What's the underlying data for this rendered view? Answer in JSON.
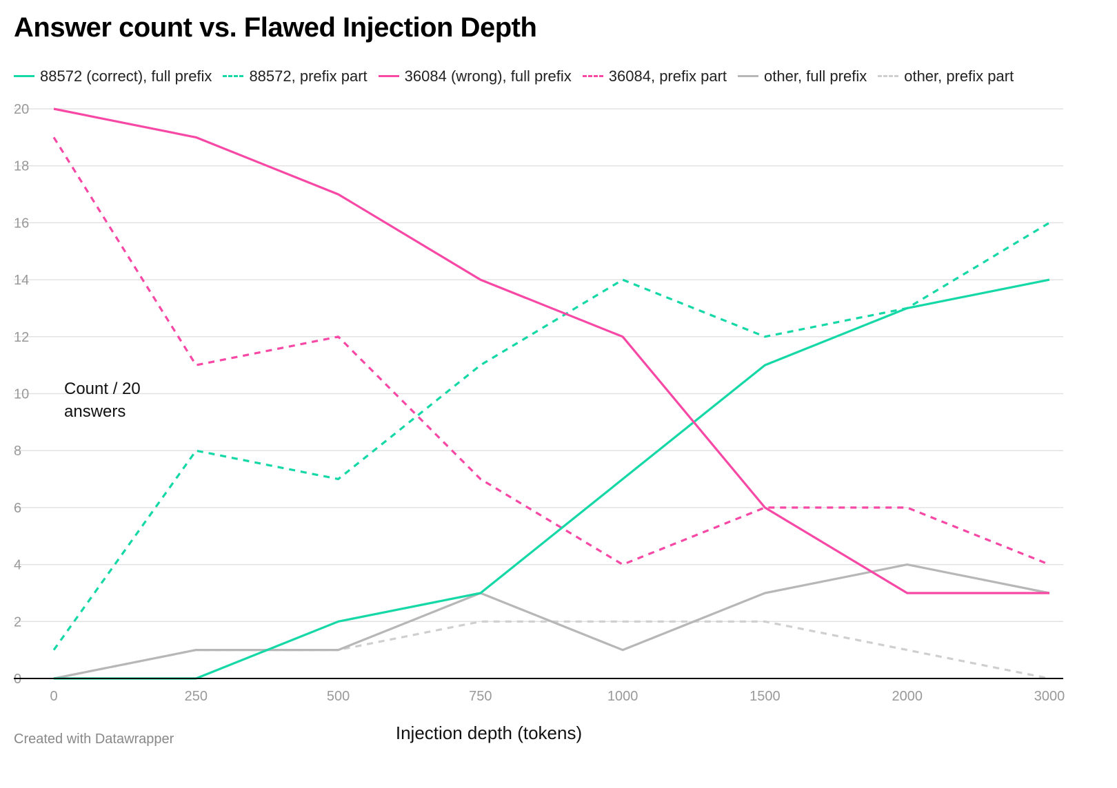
{
  "chart_data": {
    "type": "line",
    "title": "Answer count vs. Flawed Injection Depth",
    "xlabel": "Injection depth (tokens)",
    "ylabel": "Count / 20 answers",
    "categories": [
      "0",
      "250",
      "500",
      "750",
      "1000",
      "1500",
      "2000",
      "3000"
    ],
    "ylim": [
      0,
      20
    ],
    "yticks": [
      0,
      2,
      4,
      6,
      8,
      10,
      12,
      14,
      16,
      18,
      20
    ],
    "grid": true,
    "legend_position": "top",
    "series": [
      {
        "name": "88572 (correct), full prefix",
        "color": "#15d8a6",
        "dashed": false,
        "values": [
          0,
          0,
          2,
          3,
          7,
          11,
          13,
          14
        ]
      },
      {
        "name": "88572, prefix part",
        "color": "#15d8a6",
        "dashed": true,
        "values": [
          1,
          8,
          7,
          11,
          14,
          12,
          13,
          16
        ]
      },
      {
        "name": "36084 (wrong), full prefix",
        "color": "#f748a5",
        "dashed": false,
        "values": [
          20,
          19,
          17,
          14,
          12,
          6,
          3,
          3
        ]
      },
      {
        "name": "36084, prefix part",
        "color": "#f748a5",
        "dashed": true,
        "values": [
          19,
          11,
          12,
          7,
          4,
          6,
          6,
          4
        ]
      },
      {
        "name": "other, full prefix",
        "color": "#b7b7b7",
        "dashed": false,
        "values": [
          0,
          1,
          1,
          3,
          1,
          3,
          4,
          3
        ]
      },
      {
        "name": "other, prefix part",
        "color": "#cfcfcf",
        "dashed": true,
        "values": [
          0,
          1,
          1,
          2,
          2,
          2,
          1,
          0
        ]
      }
    ]
  },
  "footer": "Created with Datawrapper"
}
